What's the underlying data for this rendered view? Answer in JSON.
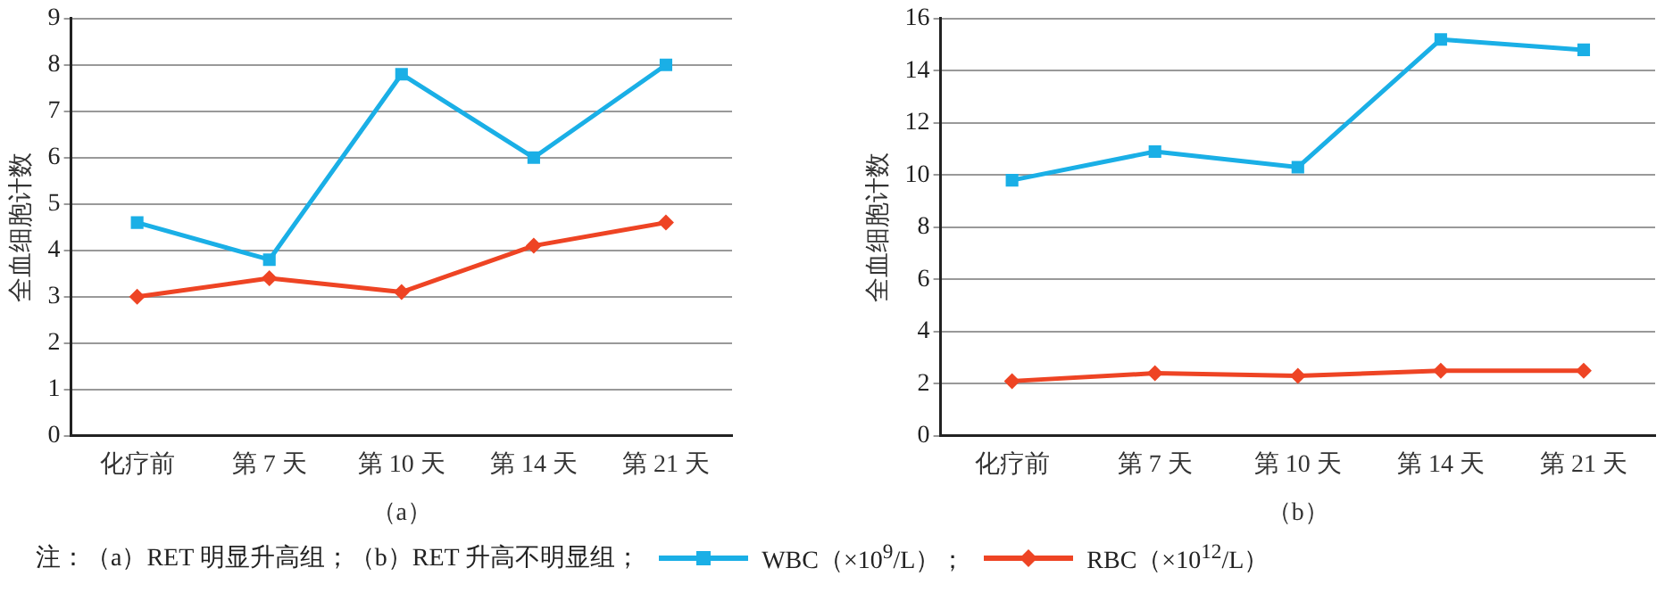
{
  "chart_data": [
    {
      "type": "line",
      "xlabel": "（a）",
      "ylabel": "全血细胞计数",
      "categories": [
        "化疗前",
        "第 7 天",
        "第 10 天",
        "第 14 天",
        "第 21 天"
      ],
      "ylim": [
        0,
        9
      ],
      "yticks": [
        0,
        1,
        2,
        3,
        4,
        5,
        6,
        7,
        8,
        9
      ],
      "grid": "y",
      "legend": "bottom",
      "annotations": [
        "注：（a）RET 明显升高组；（b）RET 升高不明显组；"
      ],
      "series": [
        {
          "name": "WBC（×10$^{9}$/L）；",
          "color": "#1aafe6",
          "marker": "square",
          "values": [
            4.6,
            3.8,
            7.8,
            6.0,
            8.0
          ]
        },
        {
          "name": "RBC（×10$^{12}$/L）",
          "color": "#ee4424",
          "marker": "diamond",
          "values": [
            3.0,
            3.4,
            3.1,
            4.1,
            4.6
          ]
        }
      ]
    },
    {
      "type": "line",
      "xlabel": "（b）",
      "ylabel": "全血细胞计数",
      "categories": [
        "化疗前",
        "第 7 天",
        "第 10 天",
        "第 14 天",
        "第 21 天"
      ],
      "ylim": [
        0,
        16
      ],
      "yticks": [
        0,
        2,
        4,
        6,
        8,
        10,
        12,
        14,
        16
      ],
      "grid": "y",
      "series": [
        {
          "color": "#1aafe6",
          "marker": "square",
          "values": [
            9.8,
            10.9,
            10.3,
            15.2,
            14.8
          ]
        },
        {
          "color": "#ee4424",
          "marker": "diamond",
          "values": [
            2.1,
            2.4,
            2.3,
            2.5,
            2.5
          ]
        }
      ]
    }
  ]
}
